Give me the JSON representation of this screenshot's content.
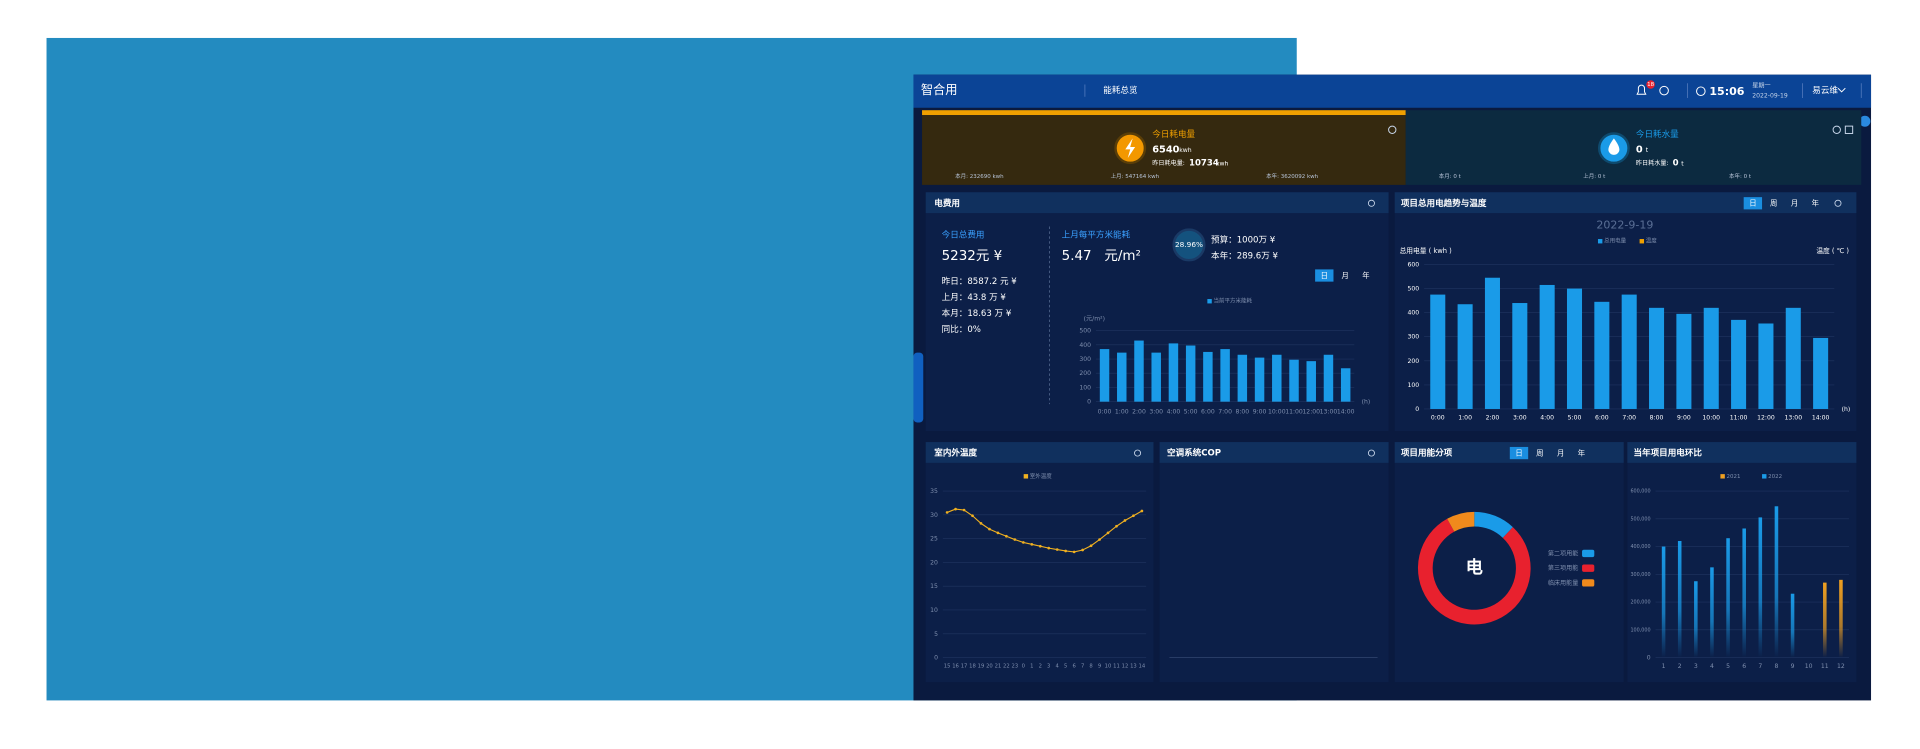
{
  "header": {
    "logo": "智合用",
    "nav": "能耗总览",
    "badge": "18",
    "time": "15:06",
    "weekday": "星期一",
    "date": "2022-09-19",
    "user": "易云维"
  },
  "cards": {
    "electric": {
      "title": "今日耗电量",
      "value": "6540",
      "unit": "kwh",
      "yesterday_label": "昨日耗电量:",
      "yesterday_value": "10734",
      "yesterday_unit": "kwh",
      "month": "本月: 232690 kwh",
      "last_month": "上月: 547164 kwh",
      "year": "本年: 3620092 kwh"
    },
    "water": {
      "title": "今日耗水量",
      "value": "0",
      "unit": "t",
      "yesterday_label": "昨日耗水量:",
      "yesterday_value": "0",
      "yesterday_unit": "t",
      "month": "本月: 0 t",
      "last_month": "上月: 0 t",
      "year": "本年: 0 t"
    }
  },
  "cost": {
    "title": "电费用",
    "today_label": "今日总费用",
    "today_value": "5232元 ¥",
    "lines": [
      "昨日：8587.2 元 ¥",
      "上月：43.8 万 ¥",
      "本月：18.63 万 ¥",
      "同比：0%"
    ],
    "area_label": "上月每平方米能耗",
    "area_value": "5.47   元/m²",
    "ratio": "28.96%",
    "budget": "预算：1000万 ¥",
    "year": "本年：289.6万 ¥",
    "tabs": [
      "日",
      "月",
      "年"
    ]
  },
  "cop": {
    "title": "空调系统COP"
  },
  "chart_data": [
    {
      "type": "bar",
      "categories": [
        "0:00",
        "1:00",
        "2:00",
        "3:00",
        "4:00",
        "5:00",
        "6:00",
        "7:00",
        "8:00",
        "9:00",
        "10:00",
        "11:00",
        "12:00",
        "13:00",
        "14:00"
      ],
      "series": [
        {
          "name": "当前平方米能耗",
          "color": "#1a9be8",
          "values": [
            370,
            345,
            430,
            345,
            410,
            395,
            350,
            370,
            330,
            310,
            330,
            295,
            285,
            330,
            235
          ]
        }
      ],
      "ylim": [
        0,
        500
      ],
      "yticks": [
        0,
        100,
        200,
        300,
        400,
        500
      ],
      "y_unit": "(元/m²)",
      "x_unit": "(h)"
    },
    {
      "type": "bar",
      "title": "项目总用电趋势与温度",
      "tabs": [
        "日",
        "周",
        "月",
        "年"
      ],
      "subtitle": "2022-9-19",
      "y_label": "总用电量 ( kwh )",
      "y2_label": "温度 ( ℃ )",
      "categories": [
        "0:00",
        "1:00",
        "2:00",
        "3:00",
        "4:00",
        "5:00",
        "6:00",
        "7:00",
        "8:00",
        "9:00",
        "10:00",
        "11:00",
        "12:00",
        "13:00",
        "14:00"
      ],
      "series": [
        {
          "name": "总用电量",
          "color": "#1a9be8",
          "values": [
            475,
            435,
            545,
            440,
            515,
            500,
            445,
            475,
            420,
            395,
            420,
            370,
            355,
            420,
            295
          ]
        },
        {
          "name": "温度",
          "color": "#f0a000",
          "values": [
            null,
            null,
            null,
            null,
            null,
            null,
            null,
            null,
            null,
            null,
            null,
            null,
            null,
            null,
            null
          ]
        }
      ],
      "ylim": [
        0,
        600
      ],
      "yticks": [
        0,
        100,
        200,
        300,
        400,
        500,
        600
      ],
      "x_unit": "(h)"
    },
    {
      "type": "line",
      "title": "室内外温度",
      "categories": [
        "15",
        "16",
        "17",
        "18",
        "19",
        "20",
        "21",
        "22",
        "23",
        "0",
        "1",
        "2",
        "3",
        "4",
        "5",
        "6",
        "7",
        "8",
        "9",
        "10",
        "11",
        "12",
        "13",
        "14"
      ],
      "series": [
        {
          "name": "室外温度",
          "color": "#f0b020",
          "values": [
            30.5,
            31.2,
            31,
            29.8,
            28.2,
            27,
            26.2,
            25.5,
            24.8,
            24.2,
            23.8,
            23.4,
            23,
            22.7,
            22.4,
            22.2,
            22.6,
            23.5,
            24.8,
            26.2,
            27.6,
            28.8,
            29.8,
            30.8
          ]
        }
      ],
      "ylim": [
        0,
        35
      ],
      "yticks": [
        0,
        5,
        10,
        15,
        20,
        25,
        30,
        35
      ]
    },
    {
      "type": "pie",
      "title": "项目用能分项",
      "tabs": [
        "日",
        "周",
        "月",
        "年"
      ],
      "center_label": "电",
      "categories": [
        "第二项用能",
        "第三项用能",
        "临床用能量"
      ],
      "values": [
        12,
        80,
        8
      ],
      "colors": [
        "#1a9be8",
        "#e8212e",
        "#f08a1c"
      ]
    },
    {
      "type": "bar",
      "title": "当年项目用电环比",
      "categories": [
        "1",
        "2",
        "3",
        "4",
        "5",
        "6",
        "7",
        "8",
        "9",
        "10",
        "11",
        "12"
      ],
      "series": [
        {
          "name": "2021",
          "color": "#f0a020",
          "values": [
            null,
            null,
            null,
            null,
            null,
            null,
            null,
            null,
            null,
            null,
            270000,
            280000
          ]
        },
        {
          "name": "2022",
          "color": "#1a9be8",
          "values": [
            400000,
            420000,
            275000,
            325000,
            430000,
            465000,
            505000,
            545000,
            230000,
            null,
            null,
            null
          ]
        }
      ],
      "ylim": [
        0,
        600000
      ],
      "yticks": [
        0,
        {
          "value": 100000,
          "label": "100,000"
        },
        {
          "value": 200000,
          "label": "200,000"
        },
        {
          "value": 300000,
          "label": "300,000"
        },
        {
          "value": 400000,
          "label": "400,000"
        },
        {
          "value": 500000,
          "label": "500,000"
        },
        {
          "value": 600000,
          "label": "600,000"
        }
      ]
    }
  ]
}
